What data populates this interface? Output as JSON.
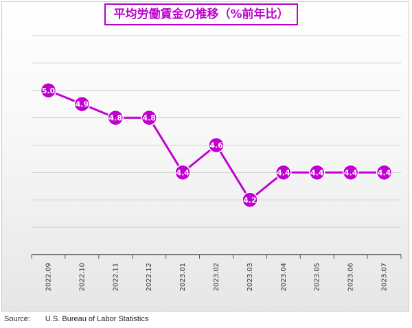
{
  "colors": {
    "accent": "#c000d0",
    "grid": "#d0d0d0",
    "axis": "#555555",
    "point_label": "#ffffff"
  },
  "chart_data": {
    "type": "line",
    "title": "平均労働賃金の推移（%前年比）",
    "categories": [
      "2022.09",
      "2022.10",
      "2022.11",
      "2022.12",
      "2023.01",
      "2023.02",
      "2023.03",
      "2023.04",
      "2023.05",
      "2023.06",
      "2023.07"
    ],
    "series": [
      {
        "values": [
          5.0,
          4.9,
          4.8,
          4.8,
          4.4,
          4.6,
          4.2,
          4.4,
          4.4,
          4.4,
          4.4
        ]
      }
    ],
    "value_labels": [
      "5.0",
      "4.9",
      "4.8",
      "4.8",
      "4.4",
      "4.6",
      "4.2",
      "4.4",
      "4.4",
      "4.4",
      "4.4"
    ],
    "ylim": [
      3.8,
      5.4
    ],
    "y_axis_labels_visible": false,
    "grid": true,
    "legend": "none"
  },
  "source": {
    "label": "Source:",
    "text": "U.S. Bureau of Labor Statistics"
  }
}
